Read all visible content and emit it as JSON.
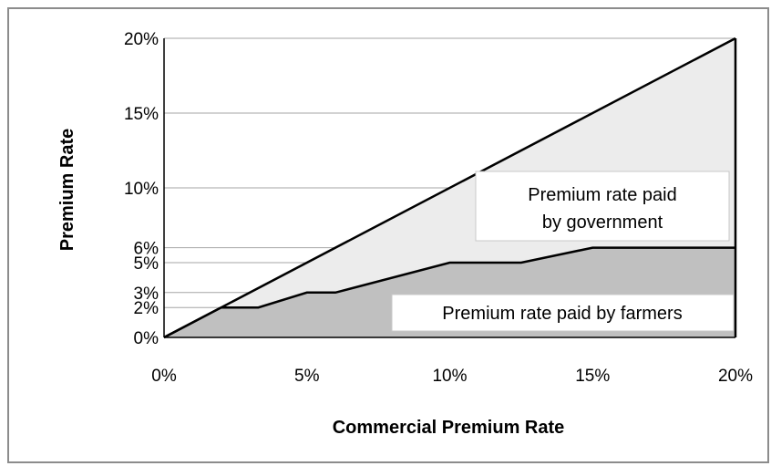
{
  "chart_data": {
    "type": "area",
    "title": "",
    "xlabel": "Commercial Premium Rate",
    "ylabel": "Premium Rate",
    "x_ticks": [
      "0%",
      "5%",
      "10%",
      "15%",
      "20%"
    ],
    "y_ticks": [
      "0%",
      "2%",
      "3%",
      "5%",
      "6%",
      "10%",
      "15%",
      "20%"
    ],
    "xlim": [
      0,
      20
    ],
    "ylim": [
      0,
      20
    ],
    "grid": "horizontal",
    "series": [
      {
        "name": "Premium rate paid by government",
        "x": [
          0,
          20
        ],
        "y": [
          0,
          20
        ]
      },
      {
        "name": "Premium rate paid by farmers",
        "x": [
          0,
          2,
          3.3,
          5,
          6,
          10,
          12.5,
          15,
          20
        ],
        "y": [
          0,
          2,
          2,
          3,
          3,
          5,
          5,
          6,
          6
        ]
      }
    ],
    "annotations": [
      {
        "lines": [
          "Premium rate paid",
          "by government"
        ]
      },
      {
        "lines": [
          "Premium rate paid by farmers"
        ]
      }
    ],
    "colors": {
      "government_fill": "#ececec",
      "farmers_fill": "#c0c0c0",
      "line": "#000000",
      "grid": "#a6a6a6",
      "frame": "#8c8c8c"
    }
  }
}
